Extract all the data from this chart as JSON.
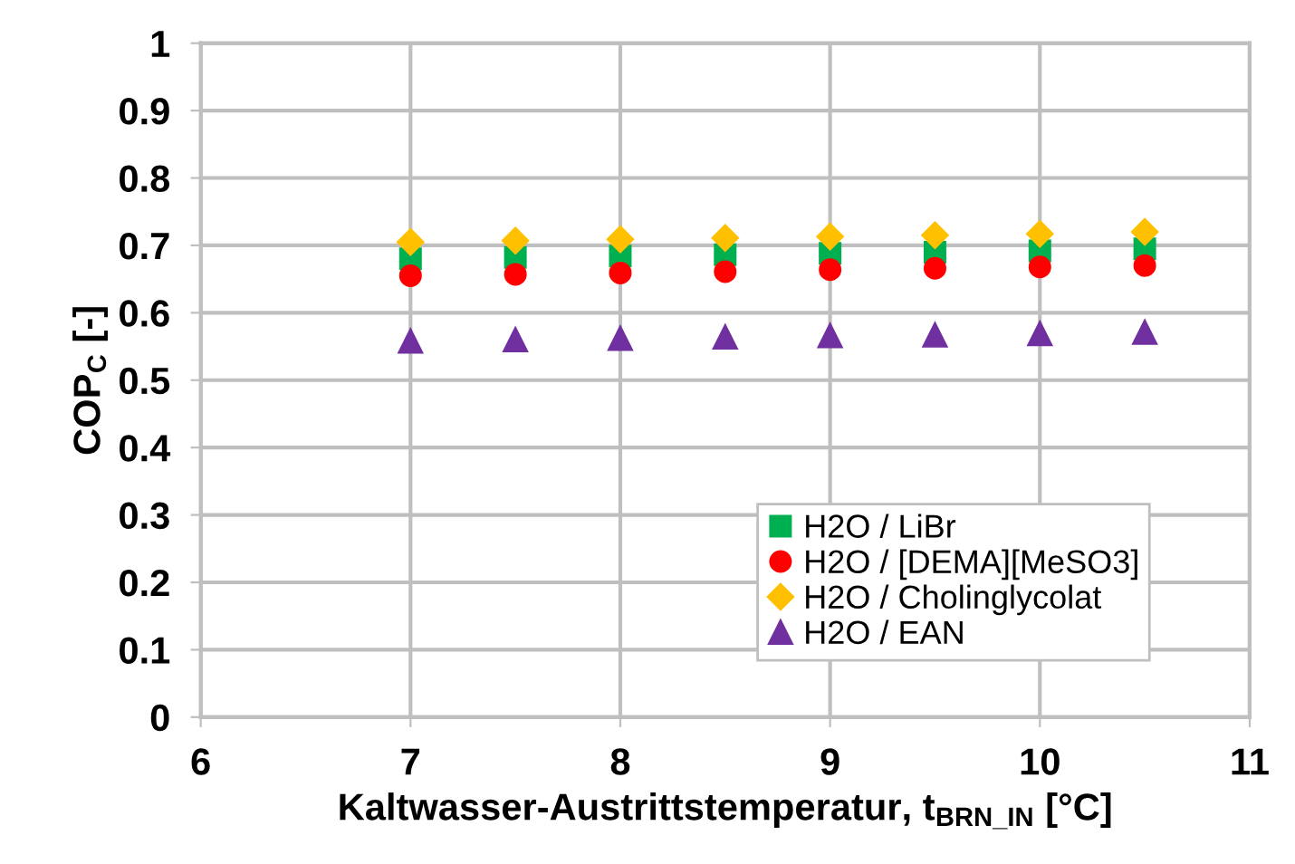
{
  "chart_data": {
    "type": "scatter",
    "xlabel": "Kaltwasser-Austrittstemperatur, t$_{BRN_IN}$ [°C]",
    "ylabel": "COP$_{C}$ [-]",
    "x": [
      7,
      7.5,
      8,
      8.5,
      9,
      9.5,
      10,
      10.5
    ],
    "series": [
      {
        "name": "H2O / LiBr",
        "color": "#00b050",
        "marker": "square",
        "values": [
          0.68,
          0.682,
          0.684,
          0.686,
          0.688,
          0.69,
          0.692,
          0.695
        ]
      },
      {
        "name": "H2O / [DEMA][MeSO3]",
        "color": "#ff0000",
        "marker": "circle",
        "values": [
          0.655,
          0.657,
          0.659,
          0.661,
          0.664,
          0.666,
          0.668,
          0.67
        ]
      },
      {
        "name": "H2O / Cholinglycolat",
        "color": "#ffc000",
        "marker": "diamond",
        "values": [
          0.705,
          0.707,
          0.709,
          0.711,
          0.713,
          0.715,
          0.717,
          0.72
        ]
      },
      {
        "name": "H2O / EAN",
        "color": "#7030a0",
        "marker": "triangle",
        "values": [
          0.558,
          0.56,
          0.562,
          0.564,
          0.566,
          0.567,
          0.569,
          0.571
        ]
      }
    ],
    "xlim": [
      6,
      11
    ],
    "xticks": [
      6,
      7,
      8,
      9,
      10,
      11
    ],
    "ylim": [
      0,
      1
    ],
    "yticks": [
      0,
      0.1,
      0.2,
      0.3,
      0.4,
      0.5,
      0.6,
      0.7,
      0.8,
      0.9,
      1
    ],
    "grid": true,
    "legend": "bottom right"
  }
}
